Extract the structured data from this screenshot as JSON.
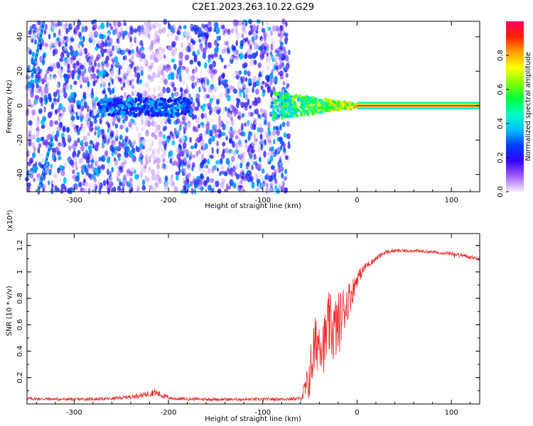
{
  "title": "C2E1.2023.263.10.22.G29",
  "chart_data": [
    {
      "type": "heatmap",
      "xlabel": "Height of straight line (km)",
      "ylabel": "Frequency (Hz)",
      "xlim": [
        -350,
        130
      ],
      "ylim": [
        -50,
        49
      ],
      "x_ticks": [
        -300,
        -200,
        -100,
        0,
        100
      ],
      "y_ticks": [
        -40,
        -20,
        0,
        20,
        40
      ],
      "colorbar": {
        "label": "Normalized spectral amplitude",
        "range": [
          0,
          1
        ],
        "ticks": [
          0.0,
          0.2,
          0.4,
          0.6,
          0.8
        ],
        "colors": [
          "#f4ecff",
          "#a060ff",
          "#3300ff",
          "#0040ff",
          "#00c0ff",
          "#00ffc0",
          "#00ff40",
          "#80ff00",
          "#ffff00",
          "#ffa000",
          "#ff2000",
          "#ff0060"
        ]
      },
      "noise_region": {
        "x_start": -350,
        "x_end": -72,
        "y_range": [
          -50,
          49
        ]
      },
      "gaps": [
        {
          "x_start": -226,
          "x_end": -205
        }
      ],
      "features": [
        {
          "name": "central-band",
          "x_start": -275,
          "x_end": -175,
          "y_center": -1,
          "y_halfwidth": 5,
          "level": 0.35
        },
        {
          "name": "converging-band",
          "x_start": -90,
          "x_end": 0,
          "y_center": 0,
          "y_halfwidth_start": 8,
          "y_halfwidth_end": 1,
          "level": 0.55
        },
        {
          "name": "carrier-line",
          "x_start": 0,
          "x_end": 130,
          "y_center": 0,
          "y_halfwidth": 1,
          "level": 1.0
        }
      ],
      "streaks": [
        {
          "x": [
            -345,
            -332
          ],
          "y": [
            16,
            49
          ]
        },
        {
          "x": [
            -338,
            -323
          ],
          "y": [
            -50,
            -18
          ]
        }
      ]
    },
    {
      "type": "line",
      "xlabel": "Height of straight line (km)",
      "ylabel": "SNR (10 * v/v)",
      "multiplier": "(x10⁴)",
      "xlim": [
        -350,
        130
      ],
      "ylim": [
        0,
        1.29
      ],
      "x_ticks": [
        -300,
        -200,
        -100,
        0,
        100
      ],
      "y_ticks": [
        0.2,
        0.4,
        0.6,
        0.8,
        1.0,
        1.2
      ],
      "color": "#ee2a2a",
      "series": [
        {
          "x": [
            -350,
            -300,
            -260,
            -240,
            -225,
            -215,
            -205,
            -195,
            -150,
            -100,
            -60,
            -52,
            -46,
            -40,
            -35,
            -30,
            -25,
            -20,
            -15,
            -10,
            -5,
            0,
            10,
            20,
            30,
            40,
            60,
            80,
            100,
            115,
            130
          ],
          "values": [
            0.04,
            0.035,
            0.04,
            0.055,
            0.07,
            0.09,
            0.06,
            0.04,
            0.035,
            0.035,
            0.04,
            0.15,
            0.4,
            0.5,
            0.45,
            0.6,
            0.55,
            0.6,
            0.7,
            0.78,
            0.85,
            0.95,
            1.05,
            1.1,
            1.15,
            1.16,
            1.16,
            1.15,
            1.14,
            1.12,
            1.1
          ],
          "noise": [
            0.012,
            0.012,
            0.012,
            0.015,
            0.02,
            0.03,
            0.02,
            0.012,
            0.012,
            0.012,
            0.015,
            0.15,
            0.25,
            0.2,
            0.22,
            0.25,
            0.25,
            0.25,
            0.2,
            0.15,
            0.1,
            0.06,
            0.03,
            0.02,
            0.015,
            0.012,
            0.012,
            0.012,
            0.015,
            0.015,
            0.015
          ]
        }
      ]
    }
  ]
}
